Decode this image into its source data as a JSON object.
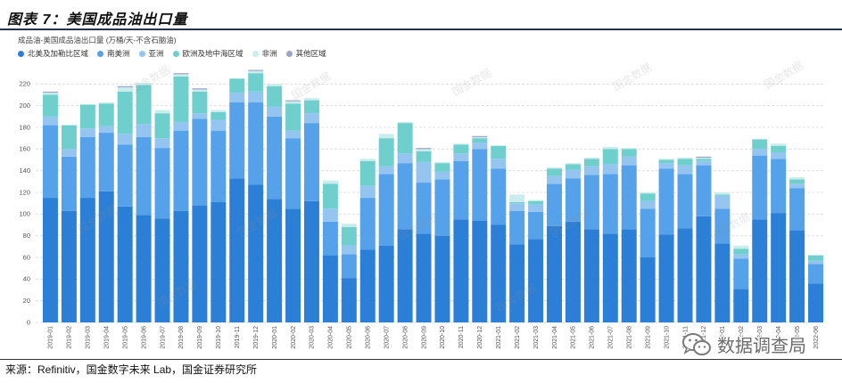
{
  "chart_data": {
    "type": "bar",
    "stacked": true,
    "title": "图表 7：美国成品油出口量",
    "subtitle": "成品油-美国成品油出口量 (万桶/天-不含石脑油)",
    "xlabel": "",
    "ylabel": "",
    "ylim": [
      0,
      240
    ],
    "yticks": [
      0,
      20,
      40,
      60,
      80,
      100,
      120,
      140,
      160,
      180,
      200,
      220
    ],
    "grid": true,
    "legend_position": "top-left",
    "categories": [
      "2019-01",
      "2019-02",
      "2019-03",
      "2019-04",
      "2019-05",
      "2019-06",
      "2019-07",
      "2019-08",
      "2019-09",
      "2019-10",
      "2019-11",
      "2019-12",
      "2020-01",
      "2020-02",
      "2020-03",
      "2020-04",
      "2020-05",
      "2020-06",
      "2020-07",
      "2020-08",
      "2020-09",
      "2020-10",
      "2020-11",
      "2020-12",
      "2021-01",
      "2021-02",
      "2021-03",
      "2021-04",
      "2021-05",
      "2021-06",
      "2021-07",
      "2021-08",
      "2021-09",
      "2021-10",
      "2021-11",
      "2021-12",
      "2022-01",
      "2022-02",
      "2022-03",
      "2022-04",
      "2022-05",
      "2022-06"
    ],
    "series": [
      {
        "name": "北美及加勒比区域",
        "color": "#2c7fd6",
        "values": [
          115,
          103,
          115,
          121,
          107,
          99,
          96,
          103,
          108,
          111,
          133,
          127,
          114,
          105,
          112,
          62,
          41,
          67,
          71,
          86,
          82,
          80,
          95,
          94,
          90,
          72,
          77,
          89,
          93,
          86,
          82,
          86,
          60,
          81,
          87,
          98,
          73,
          31,
          95,
          101,
          85,
          36
        ]
      },
      {
        "name": "南美洲",
        "color": "#55a1ea",
        "values": [
          67,
          50,
          56,
          54,
          57,
          72,
          65,
          74,
          80,
          66,
          70,
          76,
          76,
          65,
          72,
          31,
          22,
          48,
          66,
          61,
          47,
          52,
          54,
          66,
          52,
          31,
          25,
          39,
          40,
          50,
          55,
          59,
          45,
          61,
          50,
          47,
          32,
          28,
          59,
          50,
          39,
          18
        ]
      },
      {
        "name": "亚洲",
        "color": "#94c4f0",
        "values": [
          8,
          7,
          8,
          6,
          10,
          12,
          9,
          8,
          5,
          10,
          9,
          10,
          9,
          7,
          9,
          12,
          8,
          11,
          7,
          9,
          19,
          7,
          7,
          6,
          9,
          7,
          7,
          7,
          8,
          8,
          9,
          8,
          7,
          5,
          8,
          4,
          12,
          4,
          6,
          6,
          4,
          3
        ]
      },
      {
        "name": "欧洲及地中海区域",
        "color": "#6fcfcc",
        "values": [
          20,
          22,
          22,
          21,
          39,
          36,
          23,
          42,
          20,
          7,
          13,
          17,
          19,
          25,
          12,
          23,
          17,
          23,
          26,
          28,
          10,
          8,
          8,
          4,
          12,
          1,
          3,
          7,
          5,
          7,
          14,
          7,
          7,
          3,
          6,
          2,
          1,
          5,
          9,
          6,
          4,
          5
        ]
      },
      {
        "name": "非洲",
        "color": "#c9ecec",
        "values": [
          2,
          0,
          0,
          1,
          4,
          2,
          3,
          2,
          2,
          2,
          0,
          2,
          2,
          2,
          2,
          3,
          3,
          2,
          4,
          1,
          2,
          1,
          1,
          1,
          0,
          7,
          1,
          1,
          1,
          1,
          2,
          1,
          1,
          1,
          1,
          1,
          2,
          3,
          0,
          2,
          2,
          0
        ]
      },
      {
        "name": "其他区域",
        "color": "#9ea3c8",
        "values": [
          1,
          0,
          0,
          0,
          1,
          0,
          0,
          1,
          1,
          0,
          0,
          1,
          0,
          1,
          0,
          0,
          0,
          0,
          0,
          0,
          1,
          0,
          0,
          1,
          0,
          0,
          0,
          0,
          0,
          0,
          0,
          0,
          0,
          0,
          0,
          1,
          0,
          0,
          0,
          0,
          0,
          0
        ]
      }
    ]
  },
  "footer": {
    "source": "来源：Refinitiv，国金数字未来 Lab，国金证券研究所"
  },
  "watermark": {
    "brand": "数据调查局",
    "brand_icon": "wechat-icon",
    "repeat": "国金数据"
  }
}
